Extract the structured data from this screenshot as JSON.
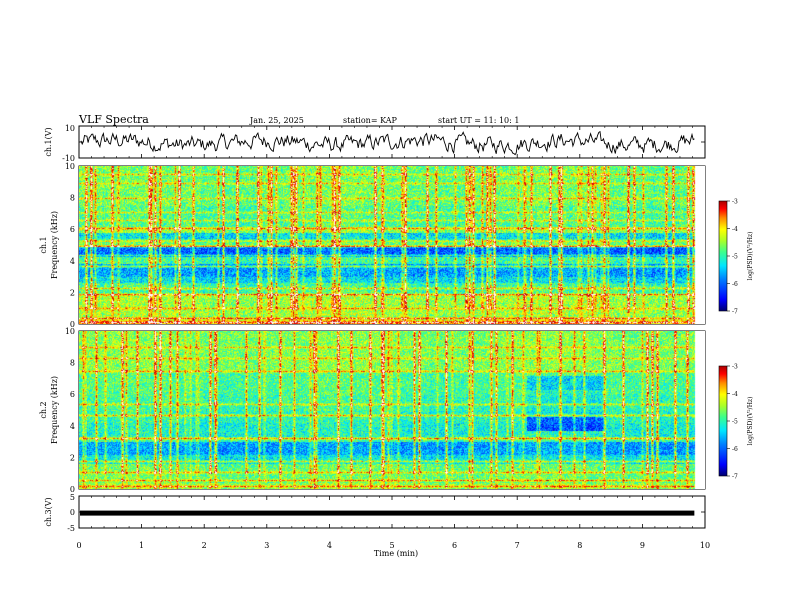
{
  "header": {
    "title": "VLF Spectra",
    "date": "Jan. 25, 2025",
    "station": "station= KAP",
    "start": "start UT =  11: 10: 1"
  },
  "chart_data": [
    {
      "type": "line",
      "panel": "ch1-waveform",
      "ylabel": "ch.1(V)",
      "ylim": [
        -10,
        10
      ],
      "yticks": [
        "10",
        "-10"
      ],
      "description_values": "noisy waveform oscillating roughly between -8 and 6 V"
    },
    {
      "type": "heatmap",
      "panel": "ch1-spectrogram",
      "ylabel_top": "ch.1",
      "ylabel": "Frequency (kHz)",
      "ylim": [
        0,
        10
      ],
      "yticks": [
        "0",
        "2",
        "4",
        "6",
        "8",
        "10"
      ],
      "colorbar": {
        "label": "log(PSD)(V²/Hz)",
        "ticks": [
          "-3",
          "-4",
          "-5",
          "-6",
          "-7"
        ],
        "range": [
          -7,
          -3
        ]
      }
    },
    {
      "type": "heatmap",
      "panel": "ch2-spectrogram",
      "ylabel_top": "ch.2",
      "ylabel": "Frequency (kHz)",
      "ylim": [
        0,
        10
      ],
      "yticks": [
        "0",
        "2",
        "4",
        "6",
        "8",
        "10"
      ],
      "colorbar": {
        "label": "log(PSD)(V²/Hz)",
        "ticks": [
          "-3",
          "-4",
          "-5",
          "-6",
          "-7"
        ],
        "range": [
          -7,
          -3
        ]
      }
    },
    {
      "type": "line",
      "panel": "ch3-waveform",
      "ylabel": "ch.3(V)",
      "ylim": [
        -5,
        5
      ],
      "yticks": [
        "5",
        "0",
        "-5"
      ],
      "level": -0.5
    }
  ],
  "xaxis": {
    "label": "Time (min)",
    "range": [
      0,
      10
    ],
    "ticks": [
      "0",
      "1",
      "2",
      "3",
      "4",
      "5",
      "6",
      "7",
      "8",
      "9",
      "10"
    ],
    "data_end": 9.83
  },
  "colors": {
    "scale": [
      "#00007f",
      "#0000ff",
      "#0080ff",
      "#00e0ff",
      "#40ff80",
      "#c0ff00",
      "#ffff00",
      "#ff8000",
      "#ff0000",
      "#b00000",
      "#ffffff"
    ]
  }
}
